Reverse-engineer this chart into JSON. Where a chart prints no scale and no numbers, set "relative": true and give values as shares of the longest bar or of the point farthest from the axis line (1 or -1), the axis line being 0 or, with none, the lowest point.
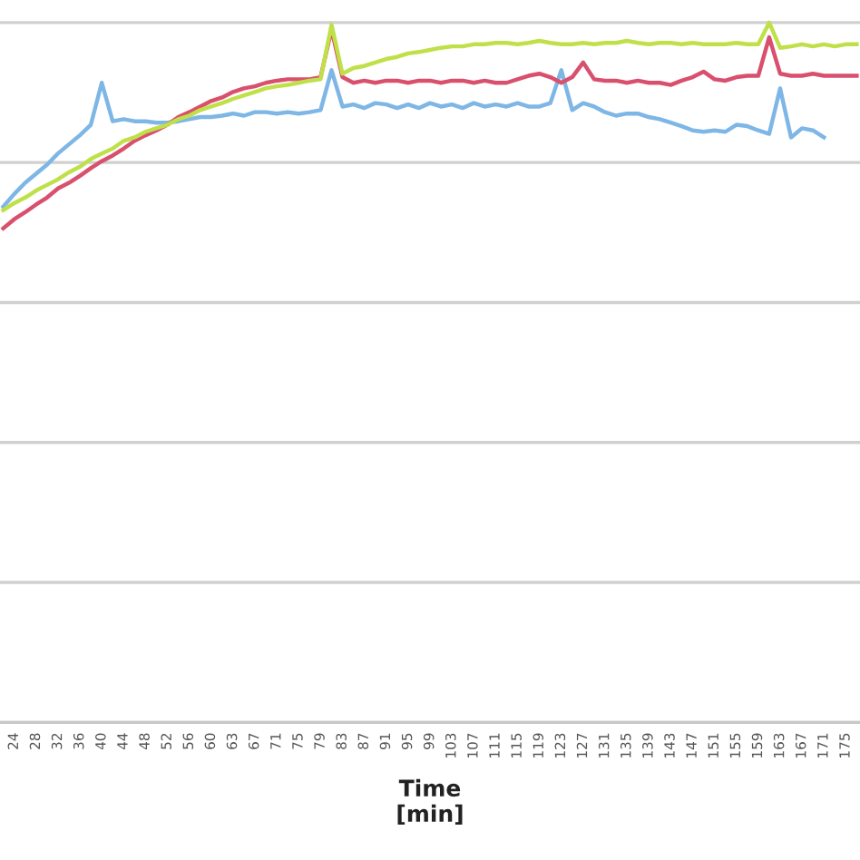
{
  "chart_data": {
    "type": "line",
    "xlabel": "Time\n[min]",
    "relative": true,
    "grid": "y",
    "marker": "none",
    "line_style": "solid",
    "categories": [
      null,
      "24",
      null,
      "28",
      null,
      "32",
      null,
      "36",
      null,
      "40",
      null,
      "44",
      null,
      "48",
      null,
      "52",
      null,
      "56",
      null,
      "60",
      null,
      "63",
      null,
      "67",
      null,
      "71",
      null,
      "75",
      null,
      "79",
      null,
      "83",
      null,
      "87",
      null,
      "91",
      null,
      "95",
      null,
      "99",
      null,
      "103",
      null,
      "107",
      null,
      "111",
      null,
      "115",
      null,
      "119",
      null,
      "123",
      null,
      "127",
      null,
      "131",
      null,
      "135",
      null,
      "139",
      null,
      "143",
      null,
      "147",
      null,
      "151",
      null,
      "155",
      null,
      "159",
      null,
      "163",
      null,
      "167",
      null,
      "171",
      null,
      "175",
      null
    ],
    "series": [
      {
        "color": "#7eb6e6",
        "values": [
          0.737,
          0.755,
          0.771,
          0.784,
          0.797,
          0.813,
          0.826,
          0.839,
          0.854,
          0.914,
          0.859,
          0.862,
          0.859,
          0.859,
          0.857,
          0.857,
          0.859,
          0.862,
          0.865,
          0.865,
          0.867,
          0.87,
          0.867,
          0.872,
          0.872,
          0.87,
          0.872,
          0.87,
          0.872,
          0.875,
          0.932,
          0.88,
          0.883,
          0.878,
          0.885,
          0.883,
          0.878,
          0.883,
          0.878,
          0.885,
          0.88,
          0.883,
          0.878,
          0.885,
          0.88,
          0.883,
          0.88,
          0.885,
          0.88,
          0.88,
          0.885,
          0.932,
          0.875,
          0.885,
          0.88,
          0.872,
          0.867,
          0.87,
          0.87,
          0.865,
          0.862,
          0.857,
          0.852,
          0.846,
          0.844,
          0.846,
          0.844,
          0.854,
          0.852,
          0.846,
          0.841,
          0.906,
          0.836,
          0.849,
          0.846,
          0.836,
          null,
          null,
          null
        ]
      },
      {
        "color": "#d9506e",
        "values": [
          0.706,
          0.719,
          0.729,
          0.74,
          0.75,
          0.763,
          0.771,
          0.781,
          0.792,
          0.802,
          0.81,
          0.82,
          0.831,
          0.839,
          0.846,
          0.854,
          0.865,
          0.872,
          0.88,
          0.888,
          0.893,
          0.901,
          0.906,
          0.909,
          0.914,
          0.917,
          0.919,
          0.919,
          0.919,
          0.922,
          0.99,
          0.922,
          0.914,
          0.917,
          0.914,
          0.917,
          0.917,
          0.914,
          0.917,
          0.917,
          0.914,
          0.917,
          0.917,
          0.914,
          0.917,
          0.914,
          0.914,
          0.919,
          0.924,
          0.927,
          0.922,
          0.914,
          0.922,
          0.943,
          0.919,
          0.917,
          0.917,
          0.914,
          0.917,
          0.914,
          0.914,
          0.911,
          0.917,
          0.922,
          0.93,
          0.919,
          0.917,
          0.922,
          0.924,
          0.924,
          0.979,
          0.927,
          0.924,
          0.924,
          0.927,
          0.924,
          0.924,
          0.924,
          0.924
        ]
      },
      {
        "color": "#c0e04a",
        "values": [
          0.732,
          0.742,
          0.75,
          0.76,
          0.768,
          0.776,
          0.786,
          0.794,
          0.805,
          0.813,
          0.82,
          0.831,
          0.836,
          0.844,
          0.849,
          0.854,
          0.862,
          0.867,
          0.875,
          0.88,
          0.885,
          0.891,
          0.896,
          0.901,
          0.906,
          0.909,
          0.911,
          0.914,
          0.917,
          0.919,
          0.997,
          0.927,
          0.935,
          0.938,
          0.943,
          0.948,
          0.951,
          0.956,
          0.958,
          0.961,
          0.964,
          0.966,
          0.966,
          0.969,
          0.969,
          0.971,
          0.971,
          0.969,
          0.971,
          0.974,
          0.971,
          0.969,
          0.969,
          0.971,
          0.969,
          0.971,
          0.971,
          0.974,
          0.971,
          0.969,
          0.971,
          0.971,
          0.969,
          0.971,
          0.969,
          0.969,
          0.969,
          0.971,
          0.969,
          0.969,
          1.0,
          0.964,
          0.966,
          0.969,
          0.966,
          0.969,
          0.966,
          0.969,
          0.969
        ]
      }
    ]
  }
}
